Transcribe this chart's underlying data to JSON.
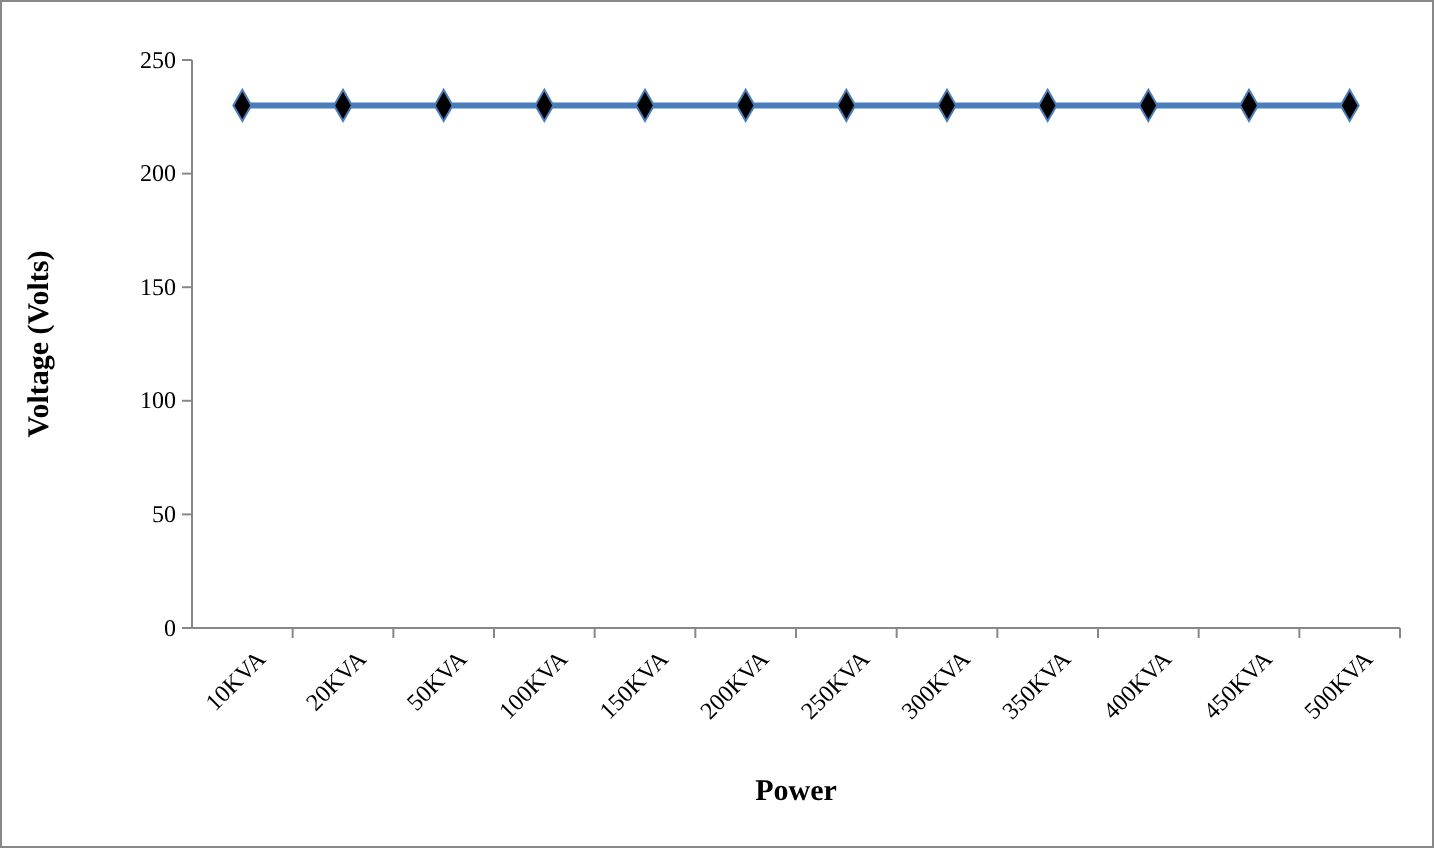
{
  "chart_data": {
    "type": "line",
    "xlabel": "Power",
    "ylabel": "Voltage (Volts)",
    "categories": [
      "10KVA",
      "20KVA",
      "50KVA",
      "100KVA",
      "150KVA",
      "200KVA",
      "250KVA",
      "300KVA",
      "350KVA",
      "400KVA",
      "450KVA",
      "500KVA"
    ],
    "series": [
      {
        "color": "#4a7ebb",
        "values": [
          230,
          230,
          230,
          230,
          230,
          230,
          230,
          230,
          230,
          230,
          230,
          230
        ]
      }
    ],
    "ylim": [
      0,
      250
    ],
    "yticks": [
      0,
      50,
      100,
      150,
      200,
      250
    ],
    "marker": "diamond",
    "line_style": "solid"
  }
}
